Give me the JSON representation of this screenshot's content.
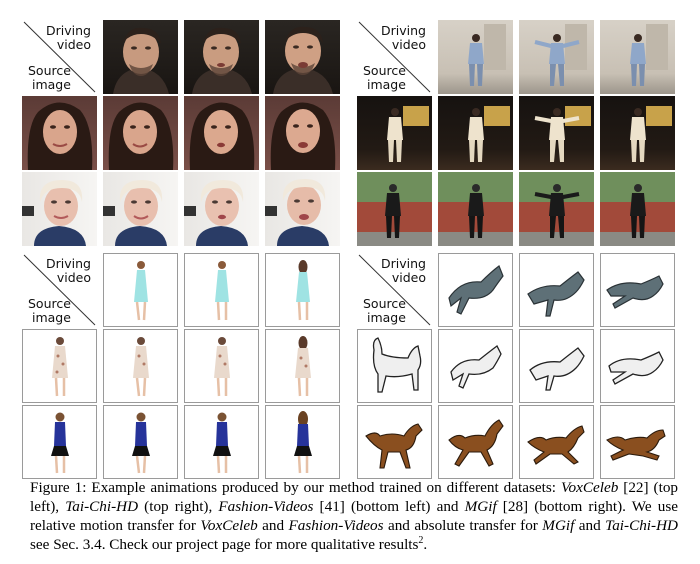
{
  "panels": {
    "corner": {
      "driving": [
        "Driving",
        "video"
      ],
      "source": [
        "Source",
        "image"
      ]
    }
  },
  "caption": {
    "figure_label": "Figure 1:",
    "intro": " Example animations produced by our method trained on different datasets: ",
    "d1": "VoxCeleb",
    "c1": " [22] (top left), ",
    "d2": "Tai-Chi-HD",
    "c2": " (top right), ",
    "d3": "Fashion-Videos",
    "c3": " [41] (bottom left) and ",
    "d4": "MGif",
    "c4": " [28] (bottom right). We use relative motion transfer for ",
    "d5": "VoxCeleb",
    "c5": " and ",
    "d6": "Fashion-Videos",
    "c6": " and absolute transfer for ",
    "d7": "MGif",
    "c7": " and ",
    "d8": "Tai-Chi-HD",
    "c8": " see Sec. 3.4. Check our project page for more qualitative results",
    "footnote": "2",
    "end": "."
  }
}
